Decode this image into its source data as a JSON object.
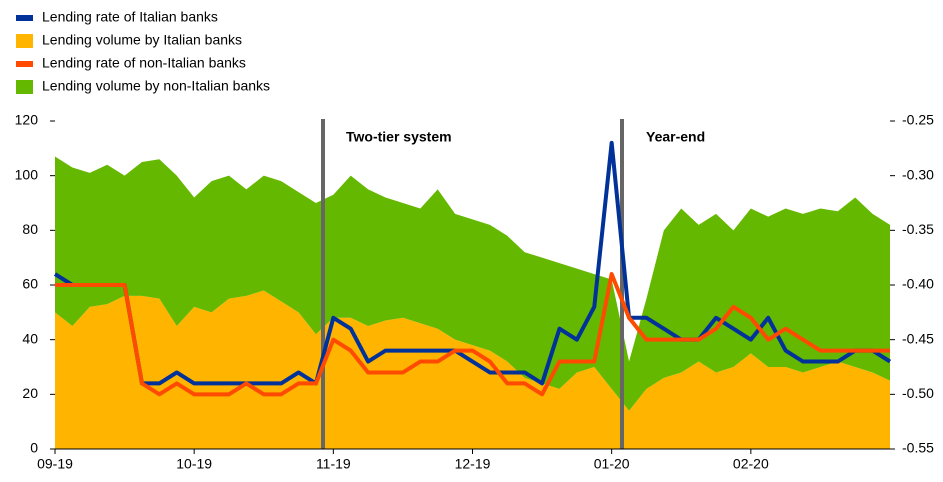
{
  "chart_data": {
    "type": "combo",
    "categories": [
      "09-19",
      null,
      null,
      null,
      null,
      null,
      null,
      null,
      "10-19",
      null,
      null,
      null,
      null,
      null,
      null,
      null,
      "11-19",
      null,
      null,
      null,
      null,
      null,
      null,
      null,
      "12-19",
      null,
      null,
      null,
      null,
      null,
      null,
      null,
      "01-20",
      null,
      null,
      null,
      null,
      null,
      null,
      null,
      "02-20",
      null,
      null,
      null,
      null,
      null,
      null,
      null,
      null
    ],
    "series": [
      {
        "name": "Lending rate of Italian banks",
        "type": "line",
        "axis": "y2",
        "color": "#003299",
        "values": [
          -0.39,
          -0.4,
          -0.4,
          -0.4,
          -0.4,
          -0.49,
          -0.49,
          -0.48,
          -0.49,
          -0.49,
          -0.49,
          -0.49,
          -0.49,
          -0.49,
          -0.48,
          -0.49,
          -0.43,
          -0.44,
          -0.47,
          -0.46,
          -0.46,
          -0.46,
          -0.46,
          -0.46,
          -0.47,
          -0.48,
          -0.48,
          -0.48,
          -0.49,
          -0.44,
          -0.45,
          -0.42,
          -0.27,
          -0.43,
          -0.43,
          -0.44,
          -0.45,
          -0.45,
          -0.43,
          -0.44,
          -0.45,
          -0.43,
          -0.46,
          -0.47,
          -0.47,
          -0.47,
          -0.46,
          -0.46,
          -0.47
        ]
      },
      {
        "name": "Lending volume by Italian banks",
        "type": "area",
        "color": "#ffb400",
        "values": [
          50,
          45,
          52,
          53,
          56,
          56,
          55,
          45,
          52,
          50,
          55,
          56,
          58,
          54,
          50,
          42,
          48,
          48,
          45,
          47,
          48,
          46,
          44,
          40,
          38,
          36,
          32,
          26,
          24,
          22,
          28,
          30,
          22,
          14,
          22,
          26,
          28,
          32,
          28,
          30,
          35,
          30,
          30,
          28,
          30,
          32,
          30,
          28,
          25
        ]
      },
      {
        "name": "Lending rate of non-Italian banks",
        "type": "line",
        "axis": "y2",
        "color": "#ff4b00",
        "values": [
          -0.4,
          -0.4,
          -0.4,
          -0.4,
          -0.4,
          -0.49,
          -0.5,
          -0.49,
          -0.5,
          -0.5,
          -0.5,
          -0.49,
          -0.5,
          -0.5,
          -0.49,
          -0.49,
          -0.45,
          -0.46,
          -0.48,
          -0.48,
          -0.48,
          -0.47,
          -0.47,
          -0.46,
          -0.46,
          -0.47,
          -0.49,
          -0.49,
          -0.5,
          -0.47,
          -0.47,
          -0.47,
          -0.39,
          -0.43,
          -0.45,
          -0.45,
          -0.45,
          -0.45,
          -0.44,
          -0.42,
          -0.43,
          -0.45,
          -0.44,
          -0.45,
          -0.46,
          -0.46,
          -0.46,
          -0.46,
          -0.46
        ]
      },
      {
        "name": "Lending volume by non-Italian banks",
        "type": "area",
        "color": "#65b800",
        "values": [
          57,
          58,
          49,
          51,
          44,
          49,
          51,
          55,
          40,
          48,
          45,
          39,
          42,
          44,
          44,
          48,
          45,
          52,
          50,
          45,
          42,
          42,
          51,
          46,
          46,
          46,
          46,
          46,
          46,
          46,
          38,
          34,
          40,
          18,
          33,
          54,
          60,
          50,
          58,
          50,
          53,
          55,
          58,
          58,
          58,
          55,
          62,
          58,
          57
        ]
      }
    ],
    "ylim": [
      0,
      120
    ],
    "yticks": [
      0,
      20,
      40,
      60,
      80,
      100,
      120
    ],
    "y2lim": [
      -0.55,
      -0.25
    ],
    "y2ticks": [
      -0.55,
      {
        "value": -0.5,
        "label": "-0.50"
      },
      -0.45,
      {
        "value": -0.4,
        "label": "-0.40"
      },
      -0.35,
      {
        "value": -0.3,
        "label": "-0.30"
      },
      -0.25
    ],
    "annotations": [
      "Two-tier system",
      "Year-end"
    ],
    "legend": "top-left"
  }
}
